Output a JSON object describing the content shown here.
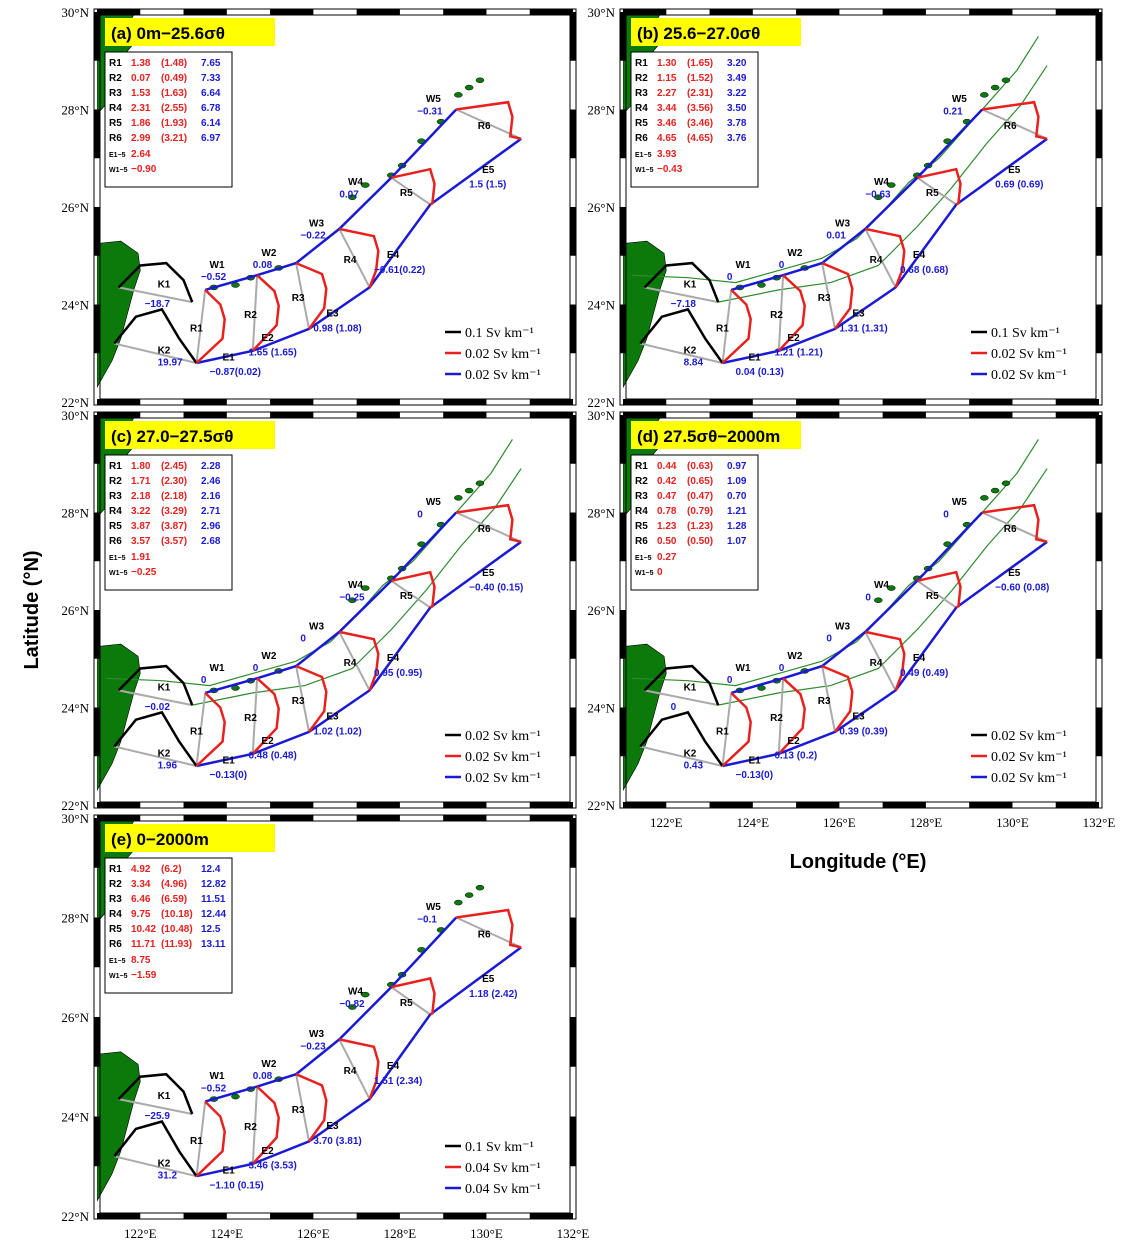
{
  "figure": {
    "ylabel": "Latitude (°N)",
    "xlabel": "Longitude (°E)",
    "lon_ticks": [
      "122°E",
      "124°E",
      "126°E",
      "128°E",
      "130°E",
      "132°E"
    ],
    "lat_ticks": [
      "22°N",
      "24°N",
      "26°N",
      "28°N",
      "30°N"
    ]
  },
  "colors": {
    "K": "#000000",
    "R": "#e8201e",
    "EW": "#1a1ad6",
    "section": "#aaaaaa",
    "land": "#0b7a0b",
    "isobath": "#2e8b2e",
    "title_bg": "#ffff00"
  },
  "panels": [
    {
      "title": "(a) 0m−25.6σθ",
      "table": [
        {
          "name": "R1",
          "a": "1.38",
          "b": "(1.48)",
          "c": "7.65"
        },
        {
          "name": "R2",
          "a": "0.07",
          "b": "(0.49)",
          "c": "7.33"
        },
        {
          "name": "R3",
          "a": "1.53",
          "b": "(1.63)",
          "c": "6.64"
        },
        {
          "name": "R4",
          "a": "2.31",
          "b": "(2.55)",
          "c": "6.78"
        },
        {
          "name": "R5",
          "a": "1.86",
          "b": "(1.93)",
          "c": "6.14"
        },
        {
          "name": "R6",
          "a": "2.99",
          "b": "(3.21)",
          "c": "6.97"
        }
      ],
      "e15": "2.64",
      "w15": "−0.90",
      "K1": "−18.7",
      "K2": "19.97",
      "W1": "−0.52",
      "W2": "0.08",
      "W3": "−0.22",
      "W4": "0.07",
      "W5": "−0.31",
      "E1": "−0.87(0.02)",
      "E2": "1.65  (1.65)",
      "E3": "0.98  (1.08)",
      "E4": "−0.61(0.22)",
      "E5": "1.5   (1.5)",
      "legend": [
        "0.1 Sv km⁻¹",
        "0.02 Sv km⁻¹",
        "0.02 Sv km⁻¹"
      ]
    },
    {
      "title": "(b) 25.6−27.0σθ",
      "table": [
        {
          "name": "R1",
          "a": "1.30",
          "b": "(1.65)",
          "c": "3.20"
        },
        {
          "name": "R2",
          "a": "1.15",
          "b": "(1.52)",
          "c": "3.49"
        },
        {
          "name": "R3",
          "a": "2.27",
          "b": "(2.31)",
          "c": "3.22"
        },
        {
          "name": "R4",
          "a": "3.44",
          "b": "(3.56)",
          "c": "3.50"
        },
        {
          "name": "R5",
          "a": "3.46",
          "b": "(3.46)",
          "c": "3.78"
        },
        {
          "name": "R6",
          "a": "4.65",
          "b": "(4.65)",
          "c": "3.76"
        }
      ],
      "e15": "3.93",
      "w15": "−0.43",
      "K1": "−7.18",
      "K2": "8.84",
      "W1": "0",
      "W2": "0",
      "W3": "0.01",
      "W4": "−0.63",
      "W5": "0.21",
      "E1": "0.04  (0.13)",
      "E2": "1.21  (1.21)",
      "E3": "1.31  (1.31)",
      "E4": "0.68  (0.68)",
      "E5": "0.69  (0.69)",
      "legend": [
        "0.1 Sv km⁻¹",
        "0.02 Sv km⁻¹",
        "0.02 Sv km⁻¹"
      ]
    },
    {
      "title": "(c) 27.0−27.5σθ",
      "table": [
        {
          "name": "R1",
          "a": "1.80",
          "b": "(2.45)",
          "c": "2.28"
        },
        {
          "name": "R2",
          "a": "1.71",
          "b": "(2.30)",
          "c": "2.46"
        },
        {
          "name": "R3",
          "a": "2.18",
          "b": "(2.18)",
          "c": "2.16"
        },
        {
          "name": "R4",
          "a": "3.22",
          "b": "(3.29)",
          "c": "2.71"
        },
        {
          "name": "R5",
          "a": "3.87",
          "b": "(3.87)",
          "c": "2.96"
        },
        {
          "name": "R6",
          "a": "3.57",
          "b": "(3.57)",
          "c": "2.68"
        }
      ],
      "e15": "1.91",
      "w15": "−0.25",
      "K1": "−0.02",
      "K2": "1.96",
      "W1": "0",
      "W2": "0",
      "W3": "0",
      "W4": "−0.25",
      "W5": "0",
      "E1": "−0.13(0)",
      "E2": "0.48  (0.48)",
      "E3": "1.02  (1.02)",
      "E4": "0.95  (0.95)",
      "E5": "−0.40 (0.15)",
      "legend": [
        "0.02 Sv km⁻¹",
        "0.02 Sv km⁻¹",
        "0.02 Sv km⁻¹"
      ]
    },
    {
      "title": "(d) 27.5σθ−2000m",
      "table": [
        {
          "name": "R1",
          "a": "0.44",
          "b": "(0.63)",
          "c": "0.97"
        },
        {
          "name": "R2",
          "a": "0.42",
          "b": "(0.65)",
          "c": "1.09"
        },
        {
          "name": "R3",
          "a": "0.47",
          "b": "(0.47)",
          "c": "0.70"
        },
        {
          "name": "R4",
          "a": "0.78",
          "b": "(0.79)",
          "c": "1.21"
        },
        {
          "name": "R5",
          "a": "1.23",
          "b": "(1.23)",
          "c": "1.28"
        },
        {
          "name": "R6",
          "a": "0.50",
          "b": "(0.50)",
          "c": "1.07"
        }
      ],
      "e15": "0.27",
      "w15": "0",
      "K1": "0",
      "K2": "0.43",
      "W1": "0",
      "W2": "0",
      "W3": "0",
      "W4": "0",
      "W5": "0",
      "E1": "−0.13(0)",
      "E2": "0.13  (0.2)",
      "E3": "0.39  (0.39)",
      "E4": "0.49  (0.49)",
      "E5": "−0.60 (0.08)",
      "legend": [
        "0.02 Sv km⁻¹",
        "0.02 Sv km⁻¹",
        "0.02 Sv km⁻¹"
      ]
    },
    {
      "title": "(e) 0−2000m",
      "table": [
        {
          "name": "R1",
          "a": "4.92",
          "b": "(6.2)",
          "c": "12.4"
        },
        {
          "name": "R2",
          "a": "3.34",
          "b": "(4.96)",
          "c": "12.82"
        },
        {
          "name": "R3",
          "a": "6.46",
          "b": "(6.59)",
          "c": "11.51"
        },
        {
          "name": "R4",
          "a": "9.75",
          "b": "(10.18)",
          "c": "12.44"
        },
        {
          "name": "R5",
          "a": "10.42",
          "b": "(10.48)",
          "c": "12.5"
        },
        {
          "name": "R6",
          "a": "11.71",
          "b": "(11.93)",
          "c": "13.11"
        }
      ],
      "e15": "8.75",
      "w15": "−1.59",
      "K1": "−25.9",
      "K2": "31.2",
      "W1": "−0.52",
      "W2": "0.08",
      "W3": "−0.23",
      "W4": "−0.82",
      "W5": "−0.1",
      "E1": "−1.10 (0.15)",
      "E2": "3.46  (3.53)",
      "E3": "3.70 (3.81)",
      "E4": "1.51  (2.34)",
      "E5": "1.18  (2.42)",
      "legend": [
        "0.1 Sv km⁻¹",
        "0.04 Sv km⁻¹",
        "0.04 Sv km⁻¹"
      ]
    }
  ]
}
